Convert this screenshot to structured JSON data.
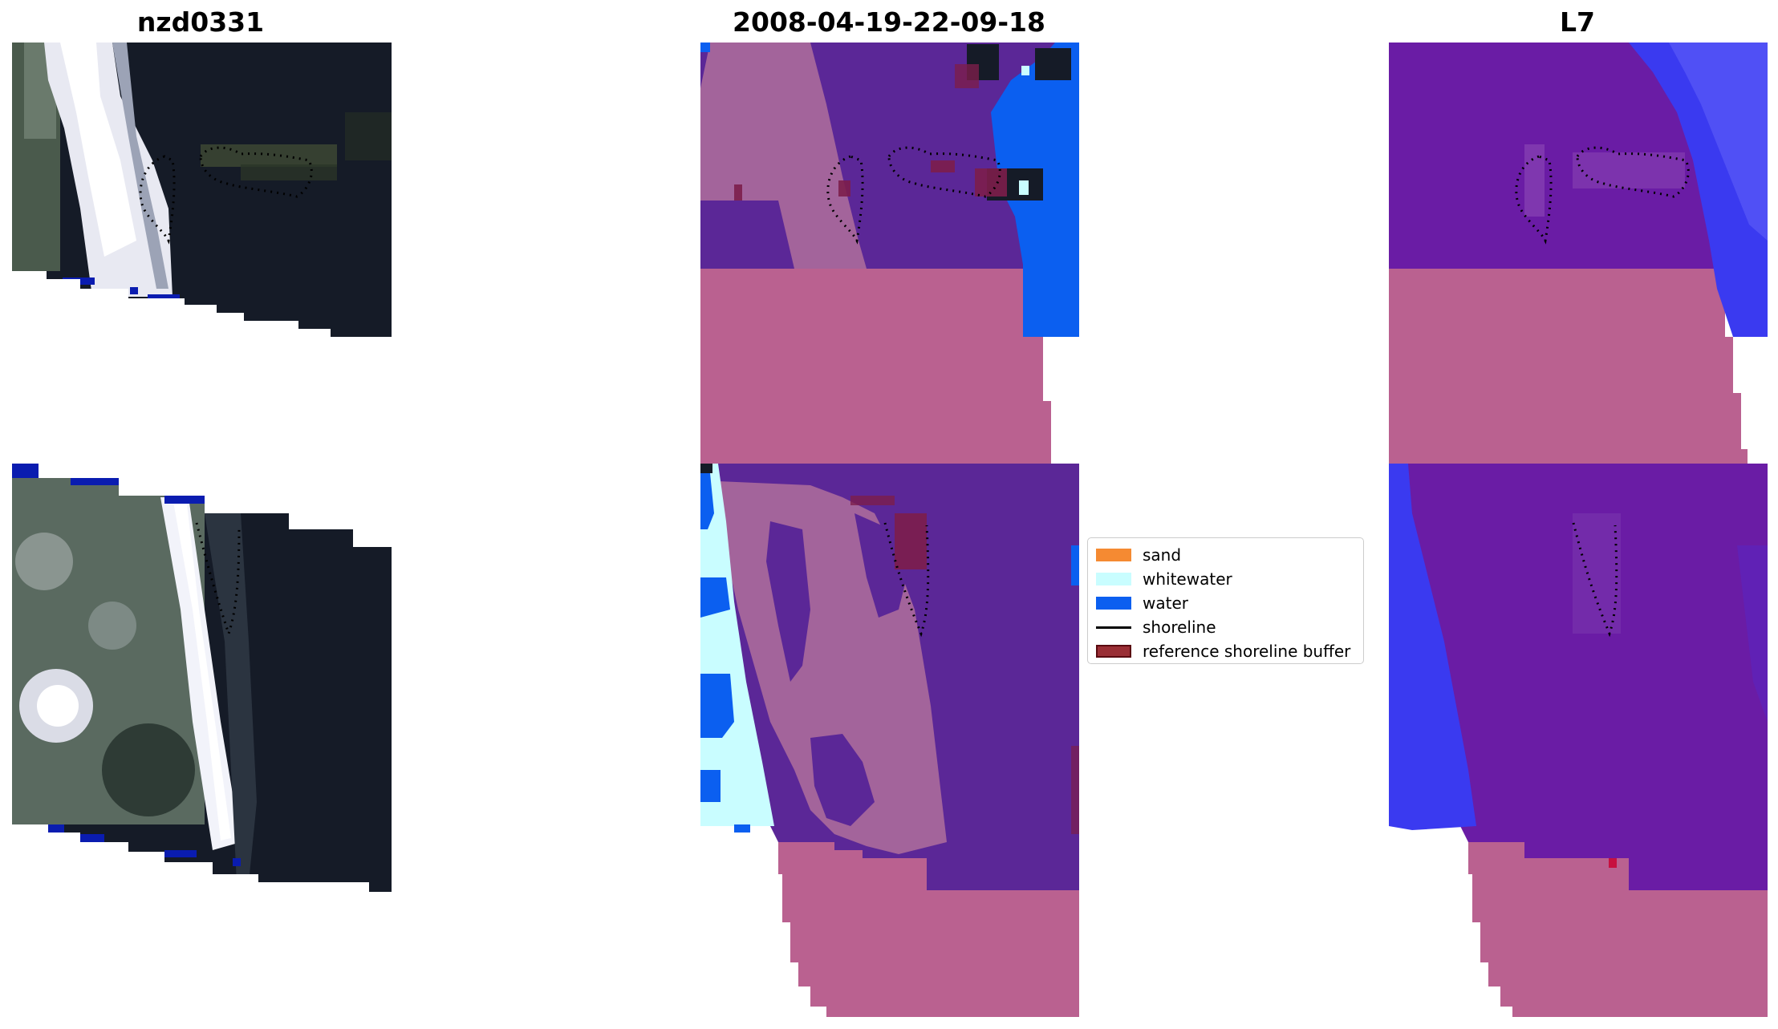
{
  "figure": {
    "titles": {
      "left": "nzd0331",
      "middle": "2008-04-19-22-09-18",
      "right": "L7"
    }
  },
  "legend": {
    "items": [
      {
        "label": "sand",
        "kind": "patch",
        "color": "#F58A32",
        "border": "#F58A32"
      },
      {
        "label": "whitewater",
        "kind": "patch",
        "color": "#C9FDFF",
        "border": "#C9FDFF"
      },
      {
        "label": "water",
        "kind": "patch",
        "color": "#0B5FF0",
        "border": "#0B5FF0"
      },
      {
        "label": "shoreline",
        "kind": "line",
        "color": "#000000"
      },
      {
        "label": "reference shoreline buffer",
        "kind": "patch",
        "color": "#9A2E35",
        "border": "#5A0A10"
      }
    ]
  },
  "colors": {
    "background": "#FFFFFF",
    "rgb_sand": "#F2F1F6",
    "rgb_dark": "#151B27",
    "rgb_vegetation": "#4A5A4C",
    "class_pink": "#BA6190",
    "class_mauve": "#A3649B",
    "class_purple": "#5B2797",
    "class_water": "#0B5FF0",
    "class_whitewater": "#C9FDFF",
    "class_buffer": "#7C1E4B",
    "mndwi_purple": "#6A1CA5",
    "mndwi_blue": "#3A3AF0",
    "mndwi_pink": "#BA6190"
  }
}
